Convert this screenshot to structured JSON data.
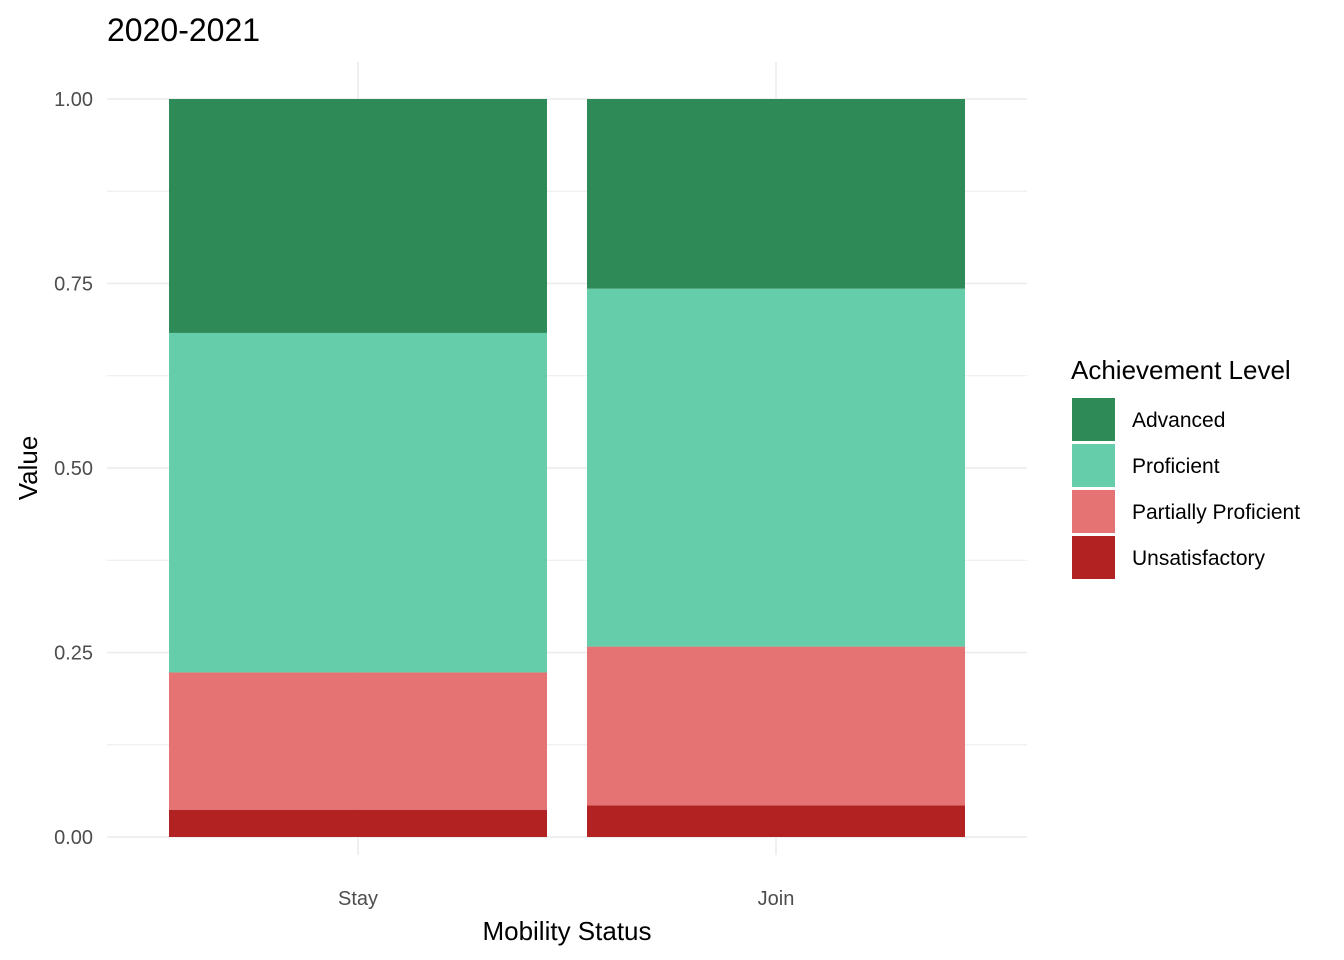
{
  "chart_data": {
    "type": "bar",
    "stacked": true,
    "title": "2020-2021",
    "xlabel": "Mobility Status",
    "ylabel": "Value",
    "categories": [
      "Stay",
      "Join"
    ],
    "ylim": [
      0,
      1
    ],
    "yticks": [
      "0.00",
      "0.25",
      "0.50",
      "0.75",
      "1.00"
    ],
    "grid": true,
    "legend": {
      "title": "Achievement Level",
      "placement": "right"
    },
    "series": [
      {
        "name": "Unsatisfactory",
        "color": "#B22222",
        "values": [
          0.037,
          0.043
        ]
      },
      {
        "name": "Partially Proficient",
        "color": "#E57373",
        "values": [
          0.186,
          0.215
        ]
      },
      {
        "name": "Proficient",
        "color": "#66CDAA",
        "values": [
          0.46,
          0.485
        ]
      },
      {
        "name": "Advanced",
        "color": "#2E8B57",
        "values": [
          0.317,
          0.257
        ]
      }
    ],
    "legend_order": [
      "Advanced",
      "Proficient",
      "Partially Proficient",
      "Unsatisfactory"
    ]
  }
}
